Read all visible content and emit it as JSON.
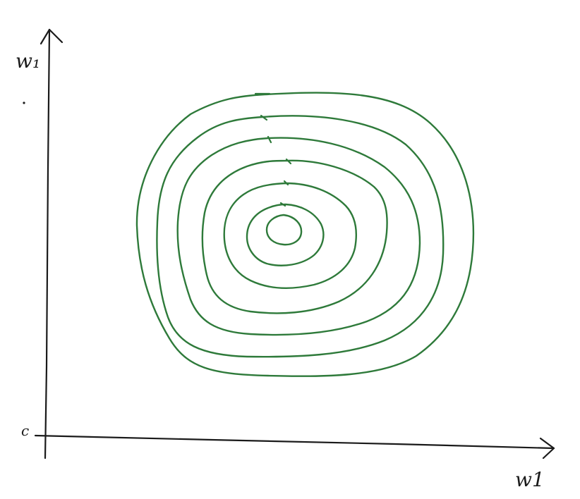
{
  "axes": {
    "y_label": "w₁",
    "x_label": "w1",
    "origin_label": "c"
  },
  "colors": {
    "ink": "#1a1a1a",
    "contour": "#2e7a3a"
  },
  "contours": {
    "count": 6,
    "has_center_loop": true
  }
}
